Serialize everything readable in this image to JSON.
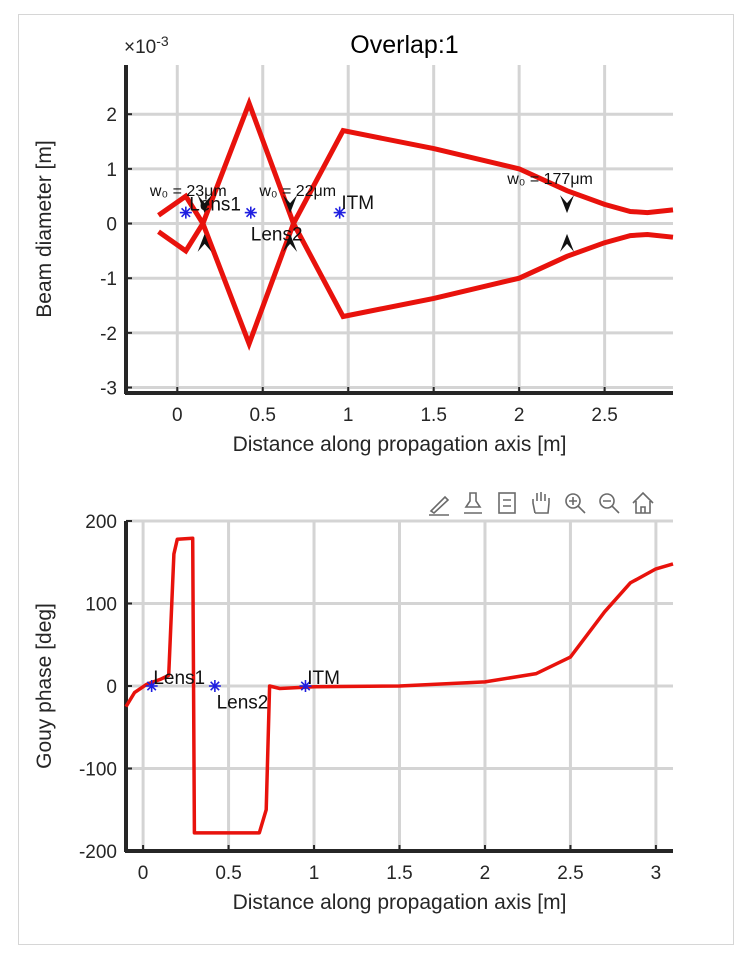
{
  "toolbar": {
    "icons": [
      "brush-icon",
      "data-tips-icon",
      "legend-icon",
      "pan-icon",
      "zoom-in-icon",
      "zoom-out-icon",
      "home-icon"
    ]
  },
  "chart_data": [
    {
      "type": "line",
      "title": "Overlap:1",
      "xlabel": "Distance along propagation axis [m]",
      "ylabel": "Beam diameter [m]",
      "exponent_label": "×10",
      "exponent_value": "-3",
      "xlim": [
        -0.3,
        2.9
      ],
      "ylim": [
        -3.1,
        2.9
      ],
      "xticks": [
        0,
        0.5,
        1,
        1.5,
        2,
        2.5
      ],
      "xtick_labels": [
        "0",
        "0.5",
        "1",
        "1.5",
        "2",
        "2.5"
      ],
      "yticks": [
        -3,
        -2,
        -1,
        0,
        1,
        2
      ],
      "ytick_labels": [
        "-3",
        "-2",
        "-1",
        "0",
        "1",
        "2"
      ],
      "grid": true,
      "line_color": "#e8120c",
      "series": [
        {
          "values_upper": [
            [
              -0.11,
              0.15
            ],
            [
              0.05,
              0.5
            ],
            [
              0.15,
              0.0
            ],
            [
              0.42,
              2.2
            ],
            [
              0.68,
              0.0
            ],
            [
              0.97,
              1.7
            ],
            [
              1.5,
              1.37
            ],
            [
              2.0,
              1.0
            ],
            [
              2.28,
              0.6
            ],
            [
              2.5,
              0.35
            ],
            [
              2.65,
              0.22
            ],
            [
              2.75,
              0.2
            ],
            [
              2.9,
              0.25
            ]
          ],
          "values_lower": [
            [
              -0.11,
              -0.15
            ],
            [
              0.05,
              -0.5
            ],
            [
              0.15,
              0.0
            ],
            [
              0.42,
              -2.2
            ],
            [
              0.68,
              0.0
            ],
            [
              0.97,
              -1.7
            ],
            [
              1.5,
              -1.37
            ],
            [
              2.0,
              -1.0
            ],
            [
              2.28,
              -0.6
            ],
            [
              2.5,
              -0.35
            ],
            [
              2.65,
              -0.22
            ],
            [
              2.75,
              -0.2
            ],
            [
              2.9,
              -0.25
            ]
          ]
        }
      ],
      "components": [
        {
          "label": "Lens1",
          "x": 0.05,
          "y": 0.2
        },
        {
          "label": "Lens2",
          "x": 0.43,
          "y": 0.2
        },
        {
          "label": "ITM",
          "x": 0.95,
          "y": 0.2
        }
      ],
      "component_labels": [
        {
          "label": "Lens1",
          "x": 0.07,
          "y": 0.35
        },
        {
          "label": "Lens2",
          "x": 0.43,
          "y": -0.2
        },
        {
          "label": "ITM",
          "x": 0.96,
          "y": 0.38
        }
      ],
      "waists": [
        {
          "label": "w₀ = 23μm",
          "x": 0.16,
          "label_x": -0.16,
          "label_y": 0.5
        },
        {
          "label": "w₀ = 22μm",
          "x": 0.66,
          "label_x": 0.48,
          "label_y": 0.5
        },
        {
          "label": "w₀ = 177μm",
          "x": 2.28,
          "label_x": 1.93,
          "label_y": 0.72
        }
      ],
      "waist_marker_y": 0.3
    },
    {
      "type": "line",
      "title": "",
      "xlabel": "Distance along propagation axis [m]",
      "ylabel": "Gouy phase [deg]",
      "xlim": [
        -0.1,
        3.1
      ],
      "ylim": [
        -200,
        200
      ],
      "xticks": [
        0,
        0.5,
        1,
        1.5,
        2,
        2.5,
        3
      ],
      "xtick_labels": [
        "0",
        "0.5",
        "1",
        "1.5",
        "2",
        "2.5",
        "3"
      ],
      "yticks": [
        -200,
        -100,
        0,
        100,
        200
      ],
      "ytick_labels": [
        "-200",
        "-100",
        "0",
        "100",
        "200"
      ],
      "grid": true,
      "line_color": "#e8120c",
      "series": [
        {
          "values": [
            [
              -0.1,
              -25
            ],
            [
              -0.05,
              -8
            ],
            [
              0.02,
              2
            ],
            [
              0.1,
              8
            ],
            [
              0.15,
              13
            ],
            [
              0.18,
              160
            ],
            [
              0.2,
              178
            ],
            [
              0.29,
              179
            ],
            [
              0.3,
              -178
            ],
            [
              0.68,
              -178
            ],
            [
              0.72,
              -150
            ],
            [
              0.74,
              0
            ],
            [
              0.8,
              -3
            ],
            [
              1.0,
              -1
            ],
            [
              1.5,
              0
            ],
            [
              2.0,
              5
            ],
            [
              2.3,
              15
            ],
            [
              2.5,
              35
            ],
            [
              2.7,
              90
            ],
            [
              2.85,
              125
            ],
            [
              3.0,
              142
            ],
            [
              3.1,
              148
            ]
          ]
        }
      ],
      "components": [
        {
          "label": "Lens1",
          "x": 0.05,
          "y": 0
        },
        {
          "label": "Lens2",
          "x": 0.42,
          "y": 0
        },
        {
          "label": "ITM",
          "x": 0.95,
          "y": 0
        }
      ],
      "component_labels": [
        {
          "label": "Lens1",
          "x": 0.06,
          "y": 10
        },
        {
          "label": "Lens2",
          "x": 0.43,
          "y": -20
        },
        {
          "label": "ITM",
          "x": 0.96,
          "y": 10
        }
      ]
    }
  ]
}
